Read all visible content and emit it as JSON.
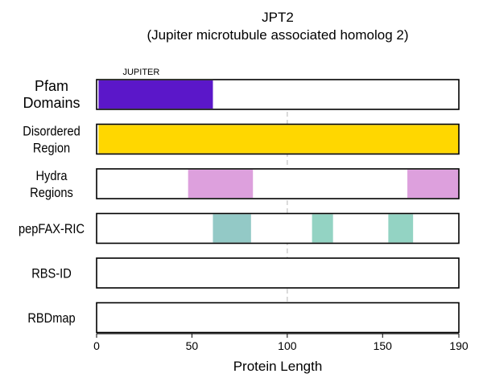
{
  "chart_data": {
    "type": "bar",
    "title_lines": [
      "JPT2",
      "(Jupiter microtubule associated homolog 2)"
    ],
    "xlabel": "Protein Length",
    "xlim": [
      0,
      190
    ],
    "xticks": [
      0,
      50,
      100,
      150,
      190
    ],
    "reference_line": 100,
    "tracks": [
      {
        "label_lines": [
          "Pfam",
          "Domains"
        ],
        "segments": [
          {
            "start": 1,
            "end": 61,
            "color": "#5b17c9",
            "label": "JUPITER"
          }
        ]
      },
      {
        "label_lines": [
          "Disordered",
          "Region"
        ],
        "segments": [
          {
            "start": 1,
            "end": 190,
            "color": "#ffd700"
          }
        ]
      },
      {
        "label_lines": [
          "Hydra",
          "Regions"
        ],
        "segments": [
          {
            "start": 48,
            "end": 82,
            "color": "#dda0dd"
          },
          {
            "start": 163,
            "end": 190,
            "color": "#dda0dd"
          }
        ]
      },
      {
        "label_lines": [
          "pepFAX-RIC"
        ],
        "segments": [
          {
            "start": 61,
            "end": 81,
            "color": "#93c9c6"
          },
          {
            "start": 113,
            "end": 124,
            "color": "#93d3c3"
          },
          {
            "start": 153,
            "end": 166,
            "color": "#93d3c3"
          }
        ]
      },
      {
        "label_lines": [
          "RBS-ID"
        ],
        "segments": []
      },
      {
        "label_lines": [
          "RBDmap"
        ],
        "segments": []
      }
    ]
  }
}
